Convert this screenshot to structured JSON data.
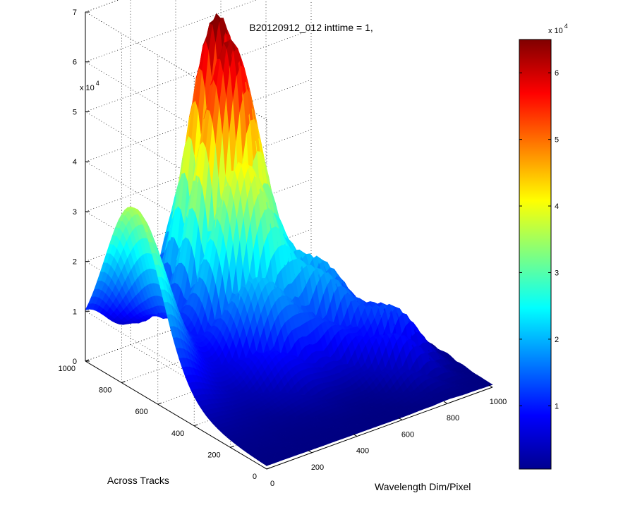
{
  "chart_data": {
    "type": "surface",
    "title": "B20120912_012 inttime = 1,",
    "xlabel": "Wavelength Dim/Pixel",
    "ylabel": "Across Tracks",
    "zlabel": "",
    "x_ticks": [
      "0",
      "200",
      "400",
      "600",
      "800",
      "1000"
    ],
    "y_ticks": [
      "0",
      "200",
      "400",
      "600",
      "800",
      "1000"
    ],
    "z_ticks": [
      "0",
      "1",
      "2",
      "3",
      "4",
      "5",
      "6",
      "7"
    ],
    "z_multiplier_base": "x 10",
    "z_multiplier_exp": "4",
    "xlim": [
      0,
      1000
    ],
    "ylim": [
      0,
      1000
    ],
    "zlim": [
      0,
      70000
    ],
    "colormap": "jet",
    "grid": true,
    "colorbar": {
      "ticks": [
        "1",
        "2",
        "3",
        "4",
        "5",
        "6"
      ],
      "multiplier_base": "x 10",
      "multiplier_exp": "4",
      "range": [
        500,
        65000
      ],
      "placement": "right"
    },
    "peaks": [
      {
        "wavelength_px": 430,
        "across_track": 800,
        "value": 65000
      },
      {
        "wavelength_px": 0,
        "across_track": 750,
        "value": 30000
      },
      {
        "wavelength_px": 660,
        "across_track": 500,
        "value": 22000
      },
      {
        "wavelength_px": 800,
        "across_track": 300,
        "value": 14000
      }
    ]
  }
}
